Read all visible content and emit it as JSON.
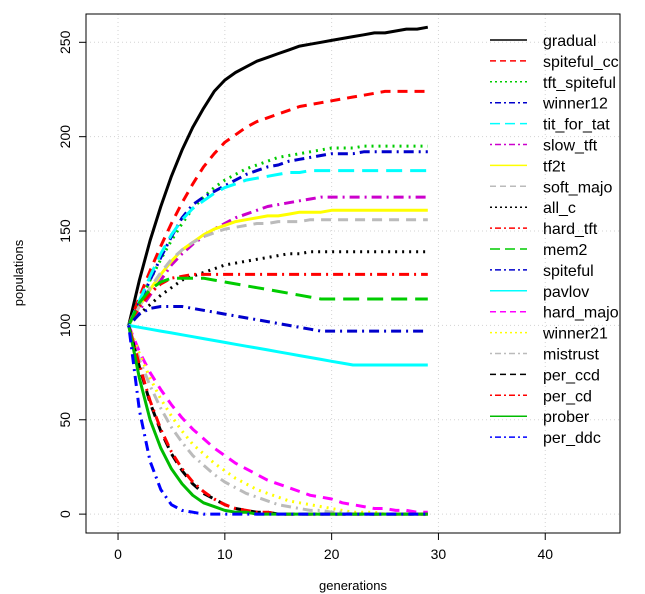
{
  "chart_data": {
    "type": "line",
    "title": "",
    "xlabel": "generations",
    "ylabel": "populations",
    "xlim": [
      -3,
      47
    ],
    "ylim": [
      -10,
      265
    ],
    "xticks": [
      0,
      10,
      20,
      30,
      40
    ],
    "yticks": [
      0,
      50,
      100,
      150,
      200,
      250
    ],
    "grid": true,
    "legend": "right",
    "x": [
      1,
      2,
      3,
      4,
      5,
      6,
      7,
      8,
      9,
      10,
      11,
      12,
      13,
      14,
      15,
      16,
      17,
      18,
      19,
      20,
      21,
      22,
      23,
      24,
      25,
      26,
      27,
      28,
      29
    ],
    "series": [
      {
        "name": "gradual",
        "color": "#000000",
        "dash": "solid",
        "values": [
          100,
          124,
          145,
          163,
          179,
          193,
          205,
          215,
          224,
          230,
          234,
          237,
          240,
          242,
          244,
          246,
          248,
          249,
          250,
          251,
          252,
          253,
          254,
          255,
          255,
          256,
          257,
          257,
          258
        ]
      },
      {
        "name": "spiteful_cc",
        "color": "#ff0000",
        "dash": "dash",
        "values": [
          100,
          115,
          129,
          142,
          154,
          165,
          175,
          184,
          191,
          197,
          201,
          205,
          208,
          210,
          212,
          214,
          216,
          217,
          218,
          219,
          220,
          221,
          222,
          223,
          224,
          224,
          224,
          224,
          224
        ]
      },
      {
        "name": "tft_spiteful",
        "color": "#00cc00",
        "dash": "dot",
        "values": [
          100,
          112,
          124,
          135,
          145,
          154,
          162,
          168,
          173,
          177,
          180,
          183,
          185,
          187,
          189,
          190,
          191,
          192,
          193,
          194,
          194,
          194,
          195,
          195,
          195,
          195,
          195,
          195,
          195
        ]
      },
      {
        "name": "winner12",
        "color": "#0000cc",
        "dash": "dotdash",
        "values": [
          100,
          112,
          124,
          136,
          147,
          157,
          164,
          168,
          171,
          174,
          177,
          180,
          182,
          184,
          185,
          187,
          188,
          189,
          190,
          191,
          191,
          191,
          192,
          192,
          192,
          192,
          192,
          192,
          192
        ]
      },
      {
        "name": "tit_for_tat",
        "color": "#00ffff",
        "dash": "longdash",
        "values": [
          100,
          113,
          126,
          138,
          148,
          156,
          162,
          166,
          170,
          173,
          175,
          177,
          178,
          179,
          180,
          181,
          181,
          182,
          182,
          182,
          182,
          182,
          182,
          182,
          182,
          182,
          182,
          182,
          182
        ]
      },
      {
        "name": "slow_tft",
        "color": "#cc00cc",
        "dash": "dotdash",
        "values": [
          100,
          108,
          116,
          124,
          132,
          138,
          143,
          147,
          151,
          154,
          157,
          159,
          161,
          163,
          164,
          165,
          166,
          167,
          168,
          168,
          168,
          168,
          168,
          168,
          168,
          168,
          168,
          168,
          168
        ]
      },
      {
        "name": "tf2t",
        "color": "#ffff00",
        "dash": "solid",
        "values": [
          100,
          110,
          119,
          127,
          134,
          140,
          144,
          148,
          151,
          153,
          155,
          156,
          157,
          158,
          158,
          159,
          160,
          160,
          160,
          161,
          161,
          161,
          161,
          161,
          161,
          161,
          161,
          161,
          161
        ]
      },
      {
        "name": "soft_majo",
        "color": "#bbbbbb",
        "dash": "dash",
        "values": [
          100,
          110,
          120,
          128,
          135,
          140,
          144,
          147,
          149,
          151,
          152,
          153,
          154,
          154,
          155,
          155,
          155,
          156,
          156,
          156,
          156,
          156,
          156,
          156,
          156,
          156,
          156,
          156,
          156
        ]
      },
      {
        "name": "all_c",
        "color": "#000000",
        "dash": "dot",
        "values": [
          100,
          106,
          111,
          116,
          120,
          124,
          126,
          128,
          130,
          132,
          133,
          134,
          135,
          136,
          137,
          138,
          138,
          139,
          139,
          139,
          139,
          139,
          139,
          139,
          139,
          139,
          139,
          139,
          139
        ]
      },
      {
        "name": "hard_tft",
        "color": "#ff0000",
        "dash": "dotdash",
        "values": [
          100,
          110,
          117,
          122,
          125,
          126,
          127,
          127,
          127,
          127,
          127,
          127,
          127,
          127,
          127,
          127,
          127,
          127,
          127,
          127,
          127,
          127,
          127,
          127,
          127,
          127,
          127,
          127,
          127
        ]
      },
      {
        "name": "mem2",
        "color": "#00cc00",
        "dash": "longdash",
        "values": [
          100,
          112,
          119,
          123,
          125,
          125,
          125,
          125,
          124,
          123,
          122,
          121,
          120,
          119,
          118,
          117,
          116,
          115,
          114,
          114,
          114,
          114,
          114,
          114,
          114,
          114,
          114,
          114,
          114
        ]
      },
      {
        "name": "spiteful",
        "color": "#0000cc",
        "dash": "dotdash",
        "values": [
          100,
          106,
          109,
          110,
          110,
          110,
          109,
          108,
          107,
          106,
          105,
          104,
          103,
          102,
          101,
          100,
          99,
          98,
          97,
          97,
          97,
          97,
          97,
          97,
          97,
          97,
          97,
          97,
          97
        ]
      },
      {
        "name": "pavlov",
        "color": "#00ffff",
        "dash": "solid",
        "values": [
          100,
          99,
          98,
          97,
          96,
          95,
          94,
          93,
          92,
          91,
          90,
          89,
          88,
          87,
          86,
          85,
          84,
          83,
          82,
          81,
          80,
          79,
          79,
          79,
          79,
          79,
          79,
          79,
          79
        ]
      },
      {
        "name": "hard_majo",
        "color": "#ff00ff",
        "dash": "dash",
        "values": [
          100,
          86,
          75,
          66,
          58,
          51,
          45,
          40,
          35,
          31,
          27,
          24,
          21,
          18,
          16,
          14,
          12,
          10,
          9,
          8,
          6,
          5,
          4,
          3,
          3,
          2,
          2,
          1,
          1
        ]
      },
      {
        "name": "winner21",
        "color": "#ffff00",
        "dash": "dot",
        "values": [
          100,
          85,
          72,
          61,
          52,
          44,
          37,
          32,
          27,
          23,
          19,
          16,
          13,
          11,
          9,
          7,
          6,
          5,
          4,
          3,
          2,
          1,
          1,
          1,
          0,
          0,
          0,
          0,
          0
        ]
      },
      {
        "name": "mistrust",
        "color": "#bbbbbb",
        "dash": "dotdash",
        "values": [
          100,
          82,
          68,
          56,
          46,
          38,
          31,
          26,
          21,
          17,
          14,
          11,
          9,
          7,
          5,
          4,
          3,
          2,
          2,
          1,
          1,
          0,
          0,
          0,
          0,
          0,
          0,
          0,
          0
        ]
      },
      {
        "name": "per_ccd",
        "color": "#000000",
        "dash": "dash",
        "values": [
          100,
          78,
          59,
          44,
          32,
          23,
          16,
          11,
          8,
          5,
          3,
          2,
          1,
          1,
          0,
          0,
          0,
          0,
          0,
          0,
          0,
          0,
          0,
          0,
          0,
          0,
          0,
          0,
          0
        ]
      },
      {
        "name": "per_cd",
        "color": "#ff0000",
        "dash": "dotdash",
        "values": [
          100,
          79,
          60,
          45,
          33,
          24,
          17,
          12,
          8,
          5,
          3,
          2,
          1,
          1,
          0,
          0,
          0,
          0,
          0,
          0,
          0,
          0,
          0,
          0,
          0,
          0,
          0,
          0,
          0
        ]
      },
      {
        "name": "prober",
        "color": "#00bb00",
        "dash": "solid",
        "values": [
          100,
          72,
          50,
          35,
          24,
          16,
          10,
          6,
          4,
          2,
          1,
          1,
          0,
          0,
          0,
          0,
          0,
          0,
          0,
          0,
          0,
          0,
          0,
          0,
          0,
          0,
          0,
          0,
          0
        ]
      },
      {
        "name": "per_ddc",
        "color": "#0000ff",
        "dash": "dotdash",
        "values": [
          100,
          55,
          28,
          13,
          5,
          2,
          1,
          0,
          0,
          0,
          0,
          0,
          0,
          0,
          0,
          0,
          0,
          0,
          0,
          0,
          0,
          0,
          0,
          0,
          0,
          0,
          0,
          0,
          0
        ]
      }
    ]
  }
}
